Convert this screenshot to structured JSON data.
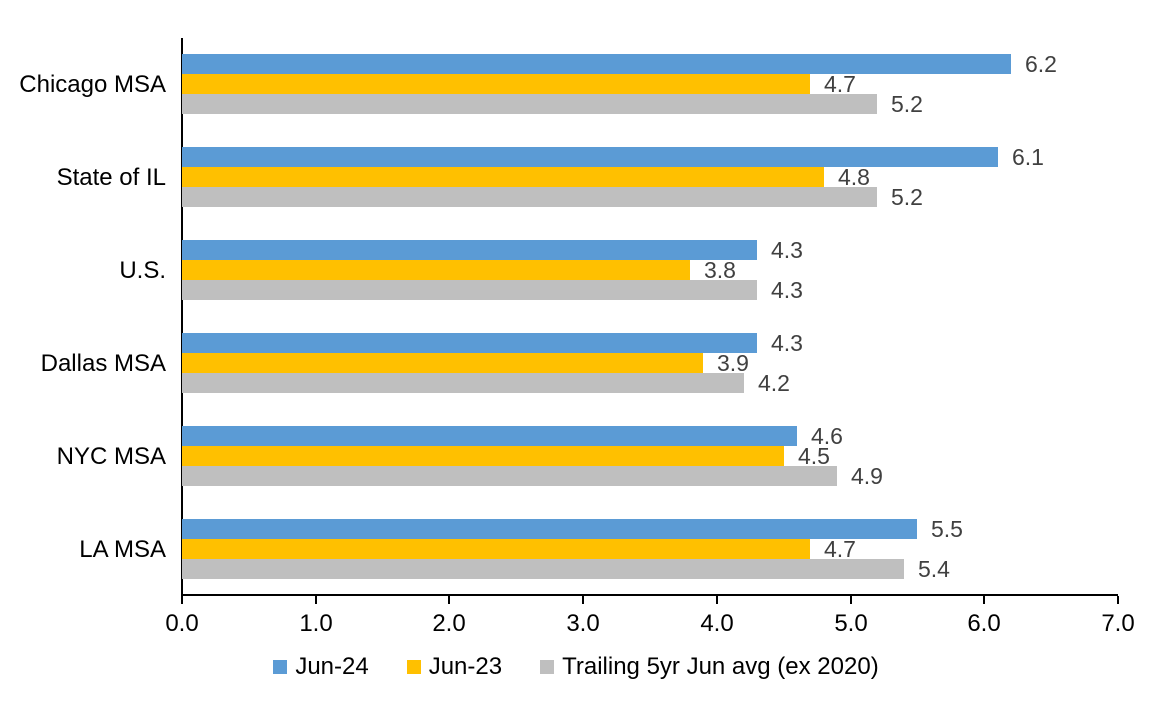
{
  "chart_data": {
    "type": "bar",
    "orientation": "horizontal",
    "title": "",
    "xlabel": "",
    "ylabel": "",
    "categories": [
      "Chicago MSA",
      "State of IL",
      "U.S.",
      "Dallas MSA",
      "NYC MSA",
      "LA MSA"
    ],
    "series": [
      {
        "name": "Jun-24",
        "color": "#5B9BD5",
        "values": [
          6.2,
          6.1,
          4.3,
          4.3,
          4.6,
          5.5
        ]
      },
      {
        "name": "Jun-23",
        "color": "#FFC000",
        "values": [
          4.7,
          4.8,
          3.8,
          3.9,
          4.5,
          4.7
        ]
      },
      {
        "name": "Trailing 5yr Jun avg (ex 2020)",
        "color": "#BFBFBF",
        "values": [
          5.2,
          5.2,
          4.3,
          4.2,
          4.9,
          5.4
        ]
      }
    ],
    "xlim": [
      0.0,
      7.0
    ],
    "x_ticks": [
      "0.0",
      "1.0",
      "2.0",
      "3.0",
      "4.0",
      "5.0",
      "6.0",
      "7.0"
    ],
    "data_labels": true,
    "data_label_color": "#404040",
    "axis_color": "#000000",
    "grid": false,
    "legend_position": "bottom"
  }
}
